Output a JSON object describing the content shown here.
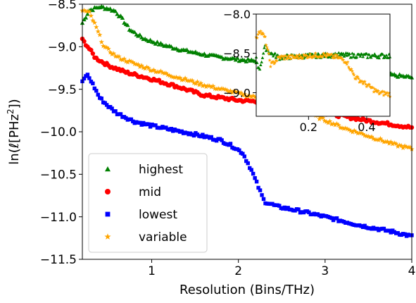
{
  "chart_data": [
    {
      "type": "scatter",
      "xlabel": "Resolution (Bins/THz)",
      "ylabel_main": "ln(ℓ[PHz",
      "ylabel_sup": "2",
      "ylabel_tail": "])",
      "xlim": [
        0.2,
        4.0
      ],
      "ylim": [
        -11.5,
        -8.5
      ],
      "xticks": [
        1,
        2,
        3,
        4
      ],
      "xtick_labels": [
        "1",
        "2",
        "3",
        "4"
      ],
      "yticks": [
        -11.5,
        -11.0,
        -10.5,
        -10.0,
        -9.5,
        -9.0,
        -8.5
      ],
      "ytick_labels": [
        "−11.5",
        "−11.0",
        "−10.5",
        "−10.0",
        "−9.5",
        "−9.0",
        "−8.5"
      ],
      "legend_position": "lower-left",
      "series": [
        {
          "name": "highest",
          "marker": "triangle",
          "color": "#008000",
          "anchors": [
            [
              0.2,
              -8.72
            ],
            [
              0.28,
              -8.57
            ],
            [
              0.4,
              -8.53
            ],
            [
              0.5,
              -8.55
            ],
            [
              0.58,
              -8.58
            ],
            [
              0.65,
              -8.66
            ],
            [
              0.75,
              -8.8
            ],
            [
              0.9,
              -8.9
            ],
            [
              1.1,
              -8.97
            ],
            [
              1.4,
              -9.05
            ],
            [
              1.7,
              -9.11
            ],
            [
              2.0,
              -9.15
            ],
            [
              2.5,
              -9.2
            ],
            [
              3.0,
              -9.25
            ],
            [
              3.5,
              -9.3
            ],
            [
              4.0,
              -9.36
            ]
          ]
        },
        {
          "name": "mid",
          "marker": "circle",
          "color": "#ff0000",
          "anchors": [
            [
              0.2,
              -8.92
            ],
            [
              0.25,
              -8.98
            ],
            [
              0.35,
              -9.13
            ],
            [
              0.5,
              -9.22
            ],
            [
              0.7,
              -9.3
            ],
            [
              1.0,
              -9.38
            ],
            [
              1.3,
              -9.47
            ],
            [
              1.6,
              -9.57
            ],
            [
              1.8,
              -9.6
            ],
            [
              2.0,
              -9.63
            ],
            [
              2.3,
              -9.65
            ],
            [
              2.6,
              -9.7
            ],
            [
              3.0,
              -9.78
            ],
            [
              3.5,
              -9.87
            ],
            [
              4.0,
              -9.95
            ]
          ]
        },
        {
          "name": "lowest",
          "marker": "square",
          "color": "#0000ff",
          "anchors": [
            [
              0.2,
              -9.42
            ],
            [
              0.25,
              -9.32
            ],
            [
              0.3,
              -9.4
            ],
            [
              0.4,
              -9.6
            ],
            [
              0.5,
              -9.7
            ],
            [
              0.6,
              -9.78
            ],
            [
              0.8,
              -9.88
            ],
            [
              1.0,
              -9.93
            ],
            [
              1.2,
              -9.97
            ],
            [
              1.5,
              -10.03
            ],
            [
              1.8,
              -10.1
            ],
            [
              1.95,
              -10.18
            ],
            [
              2.05,
              -10.25
            ],
            [
              2.15,
              -10.45
            ],
            [
              2.25,
              -10.7
            ],
            [
              2.3,
              -10.82
            ],
            [
              2.45,
              -10.88
            ],
            [
              2.7,
              -10.93
            ],
            [
              3.0,
              -11.0
            ],
            [
              3.4,
              -11.1
            ],
            [
              3.8,
              -11.18
            ],
            [
              4.0,
              -11.23
            ]
          ]
        },
        {
          "name": "variable",
          "marker": "star",
          "color": "#ffa500",
          "anchors": [
            [
              0.2,
              -8.57
            ],
            [
              0.28,
              -8.6
            ],
            [
              0.35,
              -8.75
            ],
            [
              0.45,
              -9.0
            ],
            [
              0.6,
              -9.12
            ],
            [
              0.8,
              -9.2
            ],
            [
              1.0,
              -9.27
            ],
            [
              1.3,
              -9.36
            ],
            [
              1.6,
              -9.45
            ],
            [
              1.8,
              -9.5
            ],
            [
              2.0,
              -9.55
            ],
            [
              2.3,
              -9.62
            ],
            [
              2.6,
              -9.68
            ],
            [
              2.9,
              -9.82
            ],
            [
              3.2,
              -9.95
            ],
            [
              3.5,
              -10.05
            ],
            [
              3.8,
              -10.15
            ],
            [
              4.0,
              -10.2
            ]
          ]
        }
      ]
    },
    {
      "type": "scatter",
      "inset": true,
      "xlim": [
        0.02,
        0.48
      ],
      "ylim": [
        -9.3,
        -8.0
      ],
      "xticks": [
        0.2,
        0.4
      ],
      "xtick_labels": [
        "0.2",
        "0.4"
      ],
      "yticks": [
        -9.0,
        -8.5,
        -8.0
      ],
      "ytick_labels": [
        "−9.0",
        "−8.5",
        "−8.0"
      ],
      "series": [
        {
          "name": "highest",
          "marker": "triangle",
          "color": "#008000",
          "anchors": [
            [
              0.02,
              -8.55
            ],
            [
              0.03,
              -8.72
            ],
            [
              0.05,
              -8.42
            ],
            [
              0.07,
              -8.5
            ],
            [
              0.1,
              -8.55
            ],
            [
              0.2,
              -8.53
            ],
            [
              0.3,
              -8.52
            ],
            [
              0.4,
              -8.53
            ],
            [
              0.48,
              -8.53
            ]
          ]
        },
        {
          "name": "variable",
          "marker": "star",
          "color": "#ffa500",
          "anchors": [
            [
              0.02,
              -8.32
            ],
            [
              0.03,
              -8.2
            ],
            [
              0.05,
              -8.3
            ],
            [
              0.07,
              -8.65
            ],
            [
              0.1,
              -8.55
            ],
            [
              0.15,
              -8.55
            ],
            [
              0.2,
              -8.53
            ],
            [
              0.25,
              -8.52
            ],
            [
              0.3,
              -8.55
            ],
            [
              0.33,
              -8.6
            ],
            [
              0.36,
              -8.8
            ],
            [
              0.4,
              -8.9
            ],
            [
              0.44,
              -9.0
            ],
            [
              0.48,
              -9.02
            ]
          ]
        }
      ]
    }
  ]
}
